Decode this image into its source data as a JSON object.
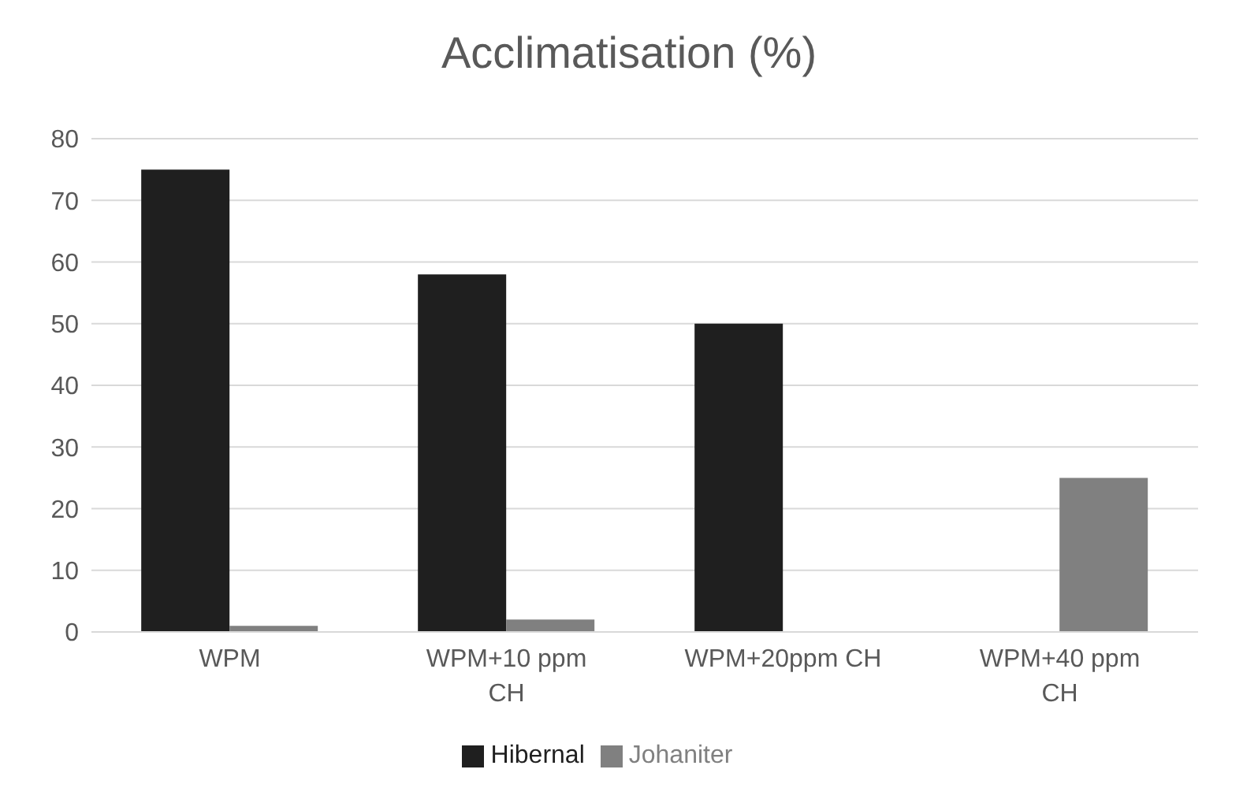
{
  "chart_data": {
    "type": "bar",
    "title": "Acclimatisation (%)",
    "categories": [
      "WPM",
      "WPM+10 ppm CH",
      "WPM+20ppm CH",
      "WPM+40 ppm CH"
    ],
    "series": [
      {
        "name": "Hibernal",
        "color": "#1f1f1f",
        "values": [
          75,
          58,
          50,
          0
        ]
      },
      {
        "name": "Johaniter",
        "color": "#808080",
        "values": [
          1,
          2,
          0,
          25
        ]
      }
    ],
    "ylim": [
      0,
      80
    ],
    "yticks": [
      0,
      10,
      20,
      30,
      40,
      50,
      60,
      70,
      80
    ],
    "grid": "y",
    "legend": "bottom"
  }
}
